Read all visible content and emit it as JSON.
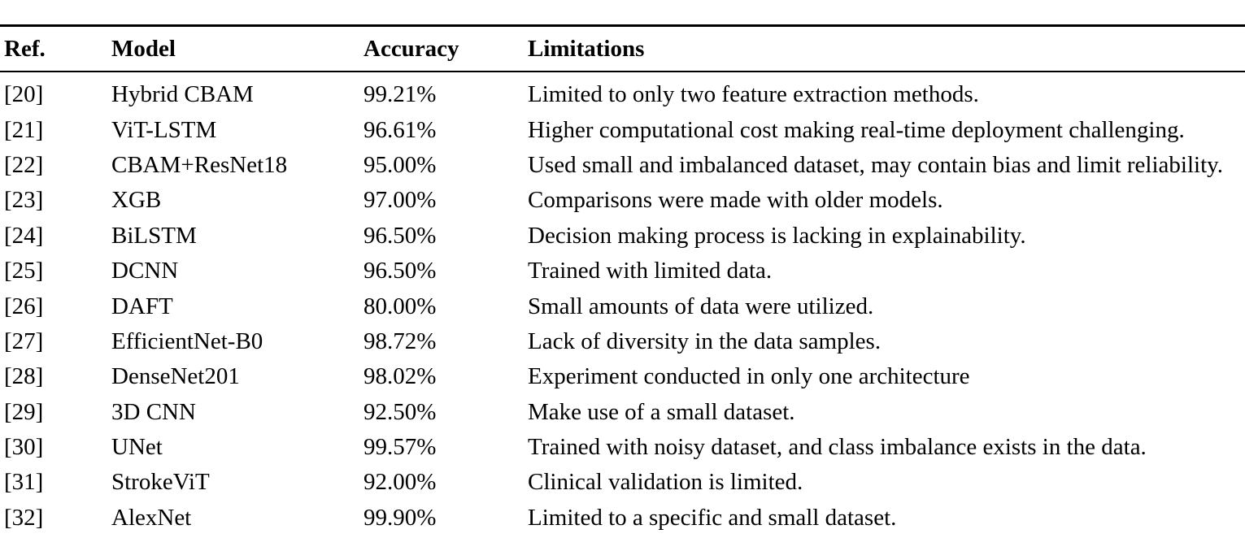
{
  "page": {
    "background_color": "#ffffff",
    "text_color": "#000000",
    "rule_color": "#000000"
  },
  "table": {
    "headers": [
      {
        "key": "ref",
        "label": "Ref."
      },
      {
        "key": "model",
        "label": "Model"
      },
      {
        "key": "accuracy",
        "label": "Accuracy"
      },
      {
        "key": "limitations",
        "label": "Limitations"
      }
    ],
    "rows": [
      {
        "ref": "[20]",
        "model": "Hybrid CBAM",
        "accuracy": "99.21%",
        "limitations": "Limited to only two feature extraction methods."
      },
      {
        "ref": "[21]",
        "model": "ViT-LSTM",
        "accuracy": "96.61%",
        "limitations": "Higher computational cost making real-time deployment challenging."
      },
      {
        "ref": "[22]",
        "model": "CBAM+ResNet18",
        "accuracy": "95.00%",
        "limitations": "Used small and imbalanced dataset, may contain bias and limit reliability."
      },
      {
        "ref": "[23]",
        "model": "XGB",
        "accuracy": "97.00%",
        "limitations": "Comparisons were made with older models."
      },
      {
        "ref": "[24]",
        "model": "BiLSTM",
        "accuracy": "96.50%",
        "limitations": "Decision making process is lacking in explainability."
      },
      {
        "ref": "[25]",
        "model": "DCNN",
        "accuracy": "96.50%",
        "limitations": "Trained with limited data."
      },
      {
        "ref": "[26]",
        "model": "DAFT",
        "accuracy": "80.00%",
        "limitations": "Small amounts of data were utilized."
      },
      {
        "ref": "[27]",
        "model": "EfficientNet-B0",
        "accuracy": "98.72%",
        "limitations": "Lack of diversity in the data samples."
      },
      {
        "ref": "[28]",
        "model": "DenseNet201",
        "accuracy": "98.02%",
        "limitations": "Experiment conducted in only one architecture"
      },
      {
        "ref": "[29]",
        "model": "3D CNN",
        "accuracy": "92.50%",
        "limitations": "Make use of a small dataset."
      },
      {
        "ref": "[30]",
        "model": "UNet",
        "accuracy": "99.57%",
        "limitations": "Trained with noisy dataset, and class imbalance exists in the data."
      },
      {
        "ref": "[31]",
        "model": "StrokeViT",
        "accuracy": "92.00%",
        "limitations": "Clinical validation is limited."
      },
      {
        "ref": "[32]",
        "model": "AlexNet",
        "accuracy": "99.90%",
        "limitations": "Limited to a specific and small dataset."
      }
    ]
  }
}
